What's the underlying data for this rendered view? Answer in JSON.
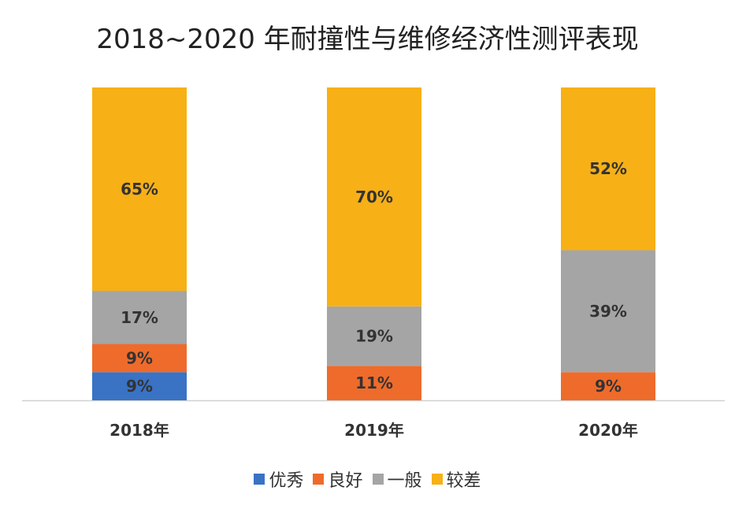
{
  "chart_data": {
    "type": "bar",
    "stacked": true,
    "title": "2018~2020 年耐撞性与维修经济性测评表现",
    "categories": [
      "2018年",
      "2019年",
      "2020年"
    ],
    "series": [
      {
        "name": "优秀",
        "color": "#3A72C4",
        "values": [
          9,
          0,
          0
        ]
      },
      {
        "name": "良好",
        "color": "#EE6B2B",
        "values": [
          9,
          11,
          9
        ]
      },
      {
        "name": "一般",
        "color": "#A5A5A5",
        "values": [
          17,
          19,
          39
        ]
      },
      {
        "name": "较差",
        "color": "#F7B016",
        "values": [
          65,
          70,
          52
        ]
      }
    ],
    "segment_labels": [
      [
        "9%",
        "9%",
        "17%",
        "65%"
      ],
      [
        "",
        "11%",
        "19%",
        "70%"
      ],
      [
        "",
        "9%",
        "39%",
        "52%"
      ]
    ],
    "ylim": [
      0,
      100
    ],
    "legend_position": "bottom",
    "grid": false
  }
}
